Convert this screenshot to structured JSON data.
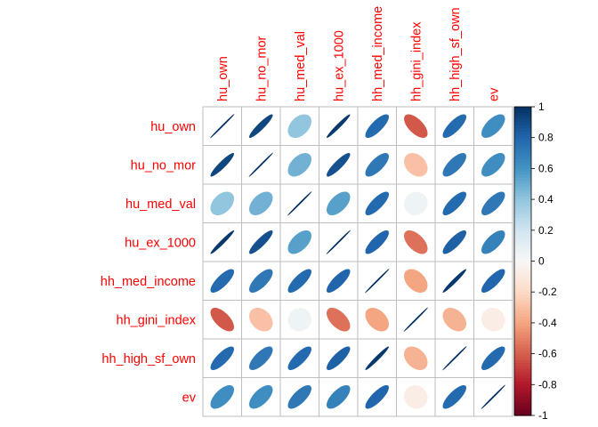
{
  "chart_data": {
    "type": "heatmap",
    "title": "",
    "variables": [
      "hu_own",
      "hu_no_mor",
      "hu_med_val",
      "hu_ex_1000",
      "hh_med_income",
      "hh_gini_index",
      "hh_high_sf_own",
      "ev"
    ],
    "matrix": [
      [
        1.0,
        0.92,
        0.4,
        0.97,
        0.78,
        -0.62,
        0.78,
        0.62
      ],
      [
        0.92,
        1.0,
        0.48,
        0.88,
        0.72,
        -0.3,
        0.72,
        0.62
      ],
      [
        0.4,
        0.48,
        1.0,
        0.55,
        0.78,
        0.05,
        0.78,
        0.72
      ],
      [
        0.97,
        0.88,
        0.55,
        1.0,
        0.8,
        -0.55,
        0.82,
        0.68
      ],
      [
        0.78,
        0.72,
        0.78,
        0.8,
        1.0,
        -0.4,
        0.97,
        0.8
      ],
      [
        -0.62,
        -0.3,
        0.05,
        -0.55,
        -0.4,
        1.0,
        -0.35,
        -0.07
      ],
      [
        0.78,
        0.72,
        0.78,
        0.82,
        0.97,
        -0.35,
        1.0,
        0.78
      ],
      [
        0.62,
        0.62,
        0.72,
        0.68,
        0.8,
        -0.07,
        0.78,
        1.0
      ]
    ],
    "colorbar": {
      "range": [
        -1,
        1
      ],
      "ticks": [
        "1",
        "0.8",
        "0.6",
        "0.4",
        "0.2",
        "0",
        "-0.2",
        "-0.4",
        "-0.6",
        "-0.8",
        "-1"
      ]
    },
    "colors": {
      "neg_strong": "#67001f",
      "neg_mid": "#d6604d",
      "neg_light": "#fddbc7",
      "neutral": "#f7f7f7",
      "pos_light": "#d1e5f0",
      "pos_mid": "#4393c3",
      "pos_strong": "#053061",
      "label": "#ff0000",
      "grid": "#bebebe"
    }
  }
}
